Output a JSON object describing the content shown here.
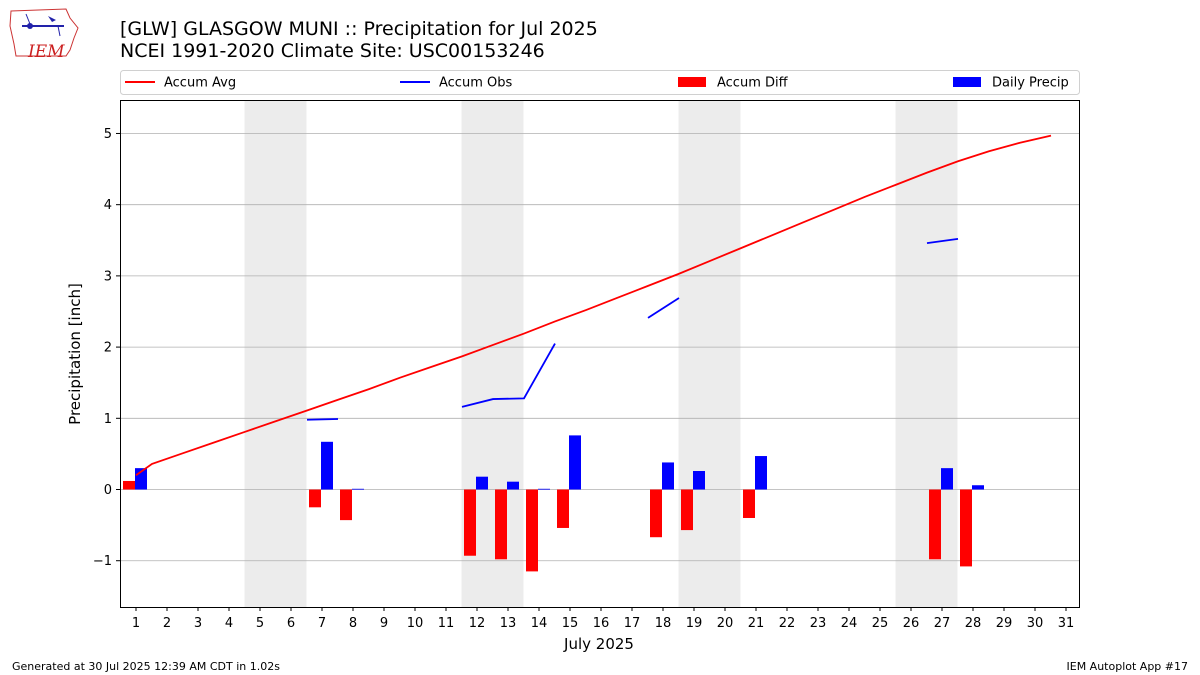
{
  "header": {
    "title_line1": "[GLW] GLASGOW MUNI :: Precipitation for Jul 2025",
    "title_line2": "NCEI 1991-2020 Climate Site: USC00153246",
    "logo_text": "IEM"
  },
  "footer": {
    "left": "Generated at 30 Jul 2025 12:39 AM CDT in 1.02s",
    "right": "IEM Autoplot App #17"
  },
  "chart_data": {
    "type": "bar",
    "xlabel": "July 2025",
    "ylabel": "Precipitation [inch]",
    "ylim": [
      -1.65,
      5.47
    ],
    "yticks": [
      -1,
      0,
      1,
      2,
      3,
      4,
      5
    ],
    "ytick_labels": [
      "−1",
      "0",
      "1",
      "2",
      "3",
      "4",
      "5"
    ],
    "grid": "horizontal",
    "legend_position": "top",
    "categories": [
      "1",
      "2",
      "3",
      "4",
      "5",
      "6",
      "7",
      "8",
      "9",
      "10",
      "11",
      "12",
      "13",
      "14",
      "15",
      "16",
      "17",
      "18",
      "19",
      "20",
      "21",
      "22",
      "23",
      "24",
      "25",
      "26",
      "27",
      "28",
      "29",
      "30",
      "31"
    ],
    "weekend_days": [
      5,
      6,
      12,
      13,
      19,
      20,
      26,
      27
    ],
    "series": [
      {
        "name": "Accum Avg",
        "kind": "line",
        "color": "#ff0000",
        "values": [
          0.2,
          0.36,
          0.51,
          0.66,
          0.81,
          0.96,
          1.11,
          1.26,
          1.41,
          1.57,
          1.72,
          1.87,
          2.03,
          2.19,
          2.36,
          2.52,
          2.69,
          2.86,
          3.03,
          3.21,
          3.39,
          3.57,
          3.75,
          3.93,
          4.11,
          4.28,
          4.45,
          4.61,
          4.75,
          4.87,
          4.97
        ]
      },
      {
        "name": "Accum Obs",
        "kind": "line",
        "color": "#0000ff",
        "values": [
          null,
          null,
          null,
          null,
          null,
          null,
          0.98,
          0.99,
          null,
          null,
          null,
          1.16,
          1.27,
          1.28,
          2.05,
          null,
          null,
          2.41,
          2.69,
          null,
          null,
          null,
          null,
          null,
          null,
          null,
          3.46,
          3.52,
          null,
          null,
          null
        ]
      },
      {
        "name": "Accum Diff",
        "kind": "bar",
        "color": "#ff0000",
        "values": [
          0.12,
          null,
          null,
          null,
          null,
          null,
          -0.25,
          -0.43,
          null,
          null,
          null,
          -0.93,
          -0.98,
          -1.15,
          -0.54,
          null,
          null,
          -0.67,
          -0.57,
          null,
          -0.4,
          null,
          null,
          null,
          null,
          null,
          -0.98,
          -1.08,
          null,
          null,
          null
        ]
      },
      {
        "name": "Daily Precip",
        "kind": "bar",
        "color": "#0000ff",
        "values": [
          0.3,
          null,
          null,
          null,
          null,
          null,
          0.67,
          0.01,
          null,
          null,
          null,
          0.18,
          0.11,
          0.01,
          0.76,
          null,
          null,
          0.38,
          0.26,
          null,
          0.47,
          null,
          null,
          null,
          null,
          null,
          0.3,
          0.06,
          null,
          null,
          null
        ]
      }
    ]
  }
}
